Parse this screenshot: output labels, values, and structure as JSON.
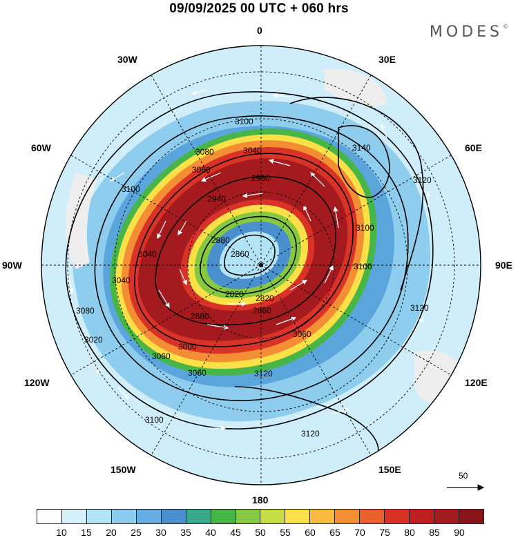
{
  "title": "09/09/2025  00 UTC  + 060 hrs",
  "brand": "MODES",
  "brand_mark": "©",
  "longitude_labels": {
    "n": "0",
    "e30": "30E",
    "e60": "60E",
    "e90": "90E",
    "e120": "120E",
    "e150": "150E",
    "s": "180",
    "w150": "150W",
    "w120": "120W",
    "w90": "90W",
    "w60": "60W",
    "w30": "30W"
  },
  "contour_labels": [
    "3100",
    "3140",
    "3120",
    "3080",
    "3060",
    "3040",
    "2980",
    "2940",
    "2880",
    "2860",
    "2820",
    "2820",
    "2860",
    "2880",
    "3000",
    "3060",
    "3120",
    "3100",
    "3120",
    "3100",
    "3060",
    "3040",
    "3020",
    "3080",
    "3100",
    "3120",
    "3100",
    "3060",
    "3040"
  ],
  "wind_reference": {
    "value": "50"
  },
  "colorbar": {
    "colors": [
      "#ffffff",
      "#d7f1fb",
      "#b3e3f7",
      "#8ccaee",
      "#66ade2",
      "#4a8fce",
      "#3aa88c",
      "#48b547",
      "#84c940",
      "#c6de44",
      "#fbe047",
      "#f8ba3f",
      "#f38e35",
      "#ec5f2e",
      "#d93227",
      "#c11e21",
      "#a51a1e",
      "#8a1519"
    ],
    "ticks": [
      "10",
      "15",
      "20",
      "25",
      "30",
      "35",
      "40",
      "45",
      "50",
      "55",
      "60",
      "65",
      "70",
      "75",
      "80",
      "85",
      "90"
    ]
  }
}
